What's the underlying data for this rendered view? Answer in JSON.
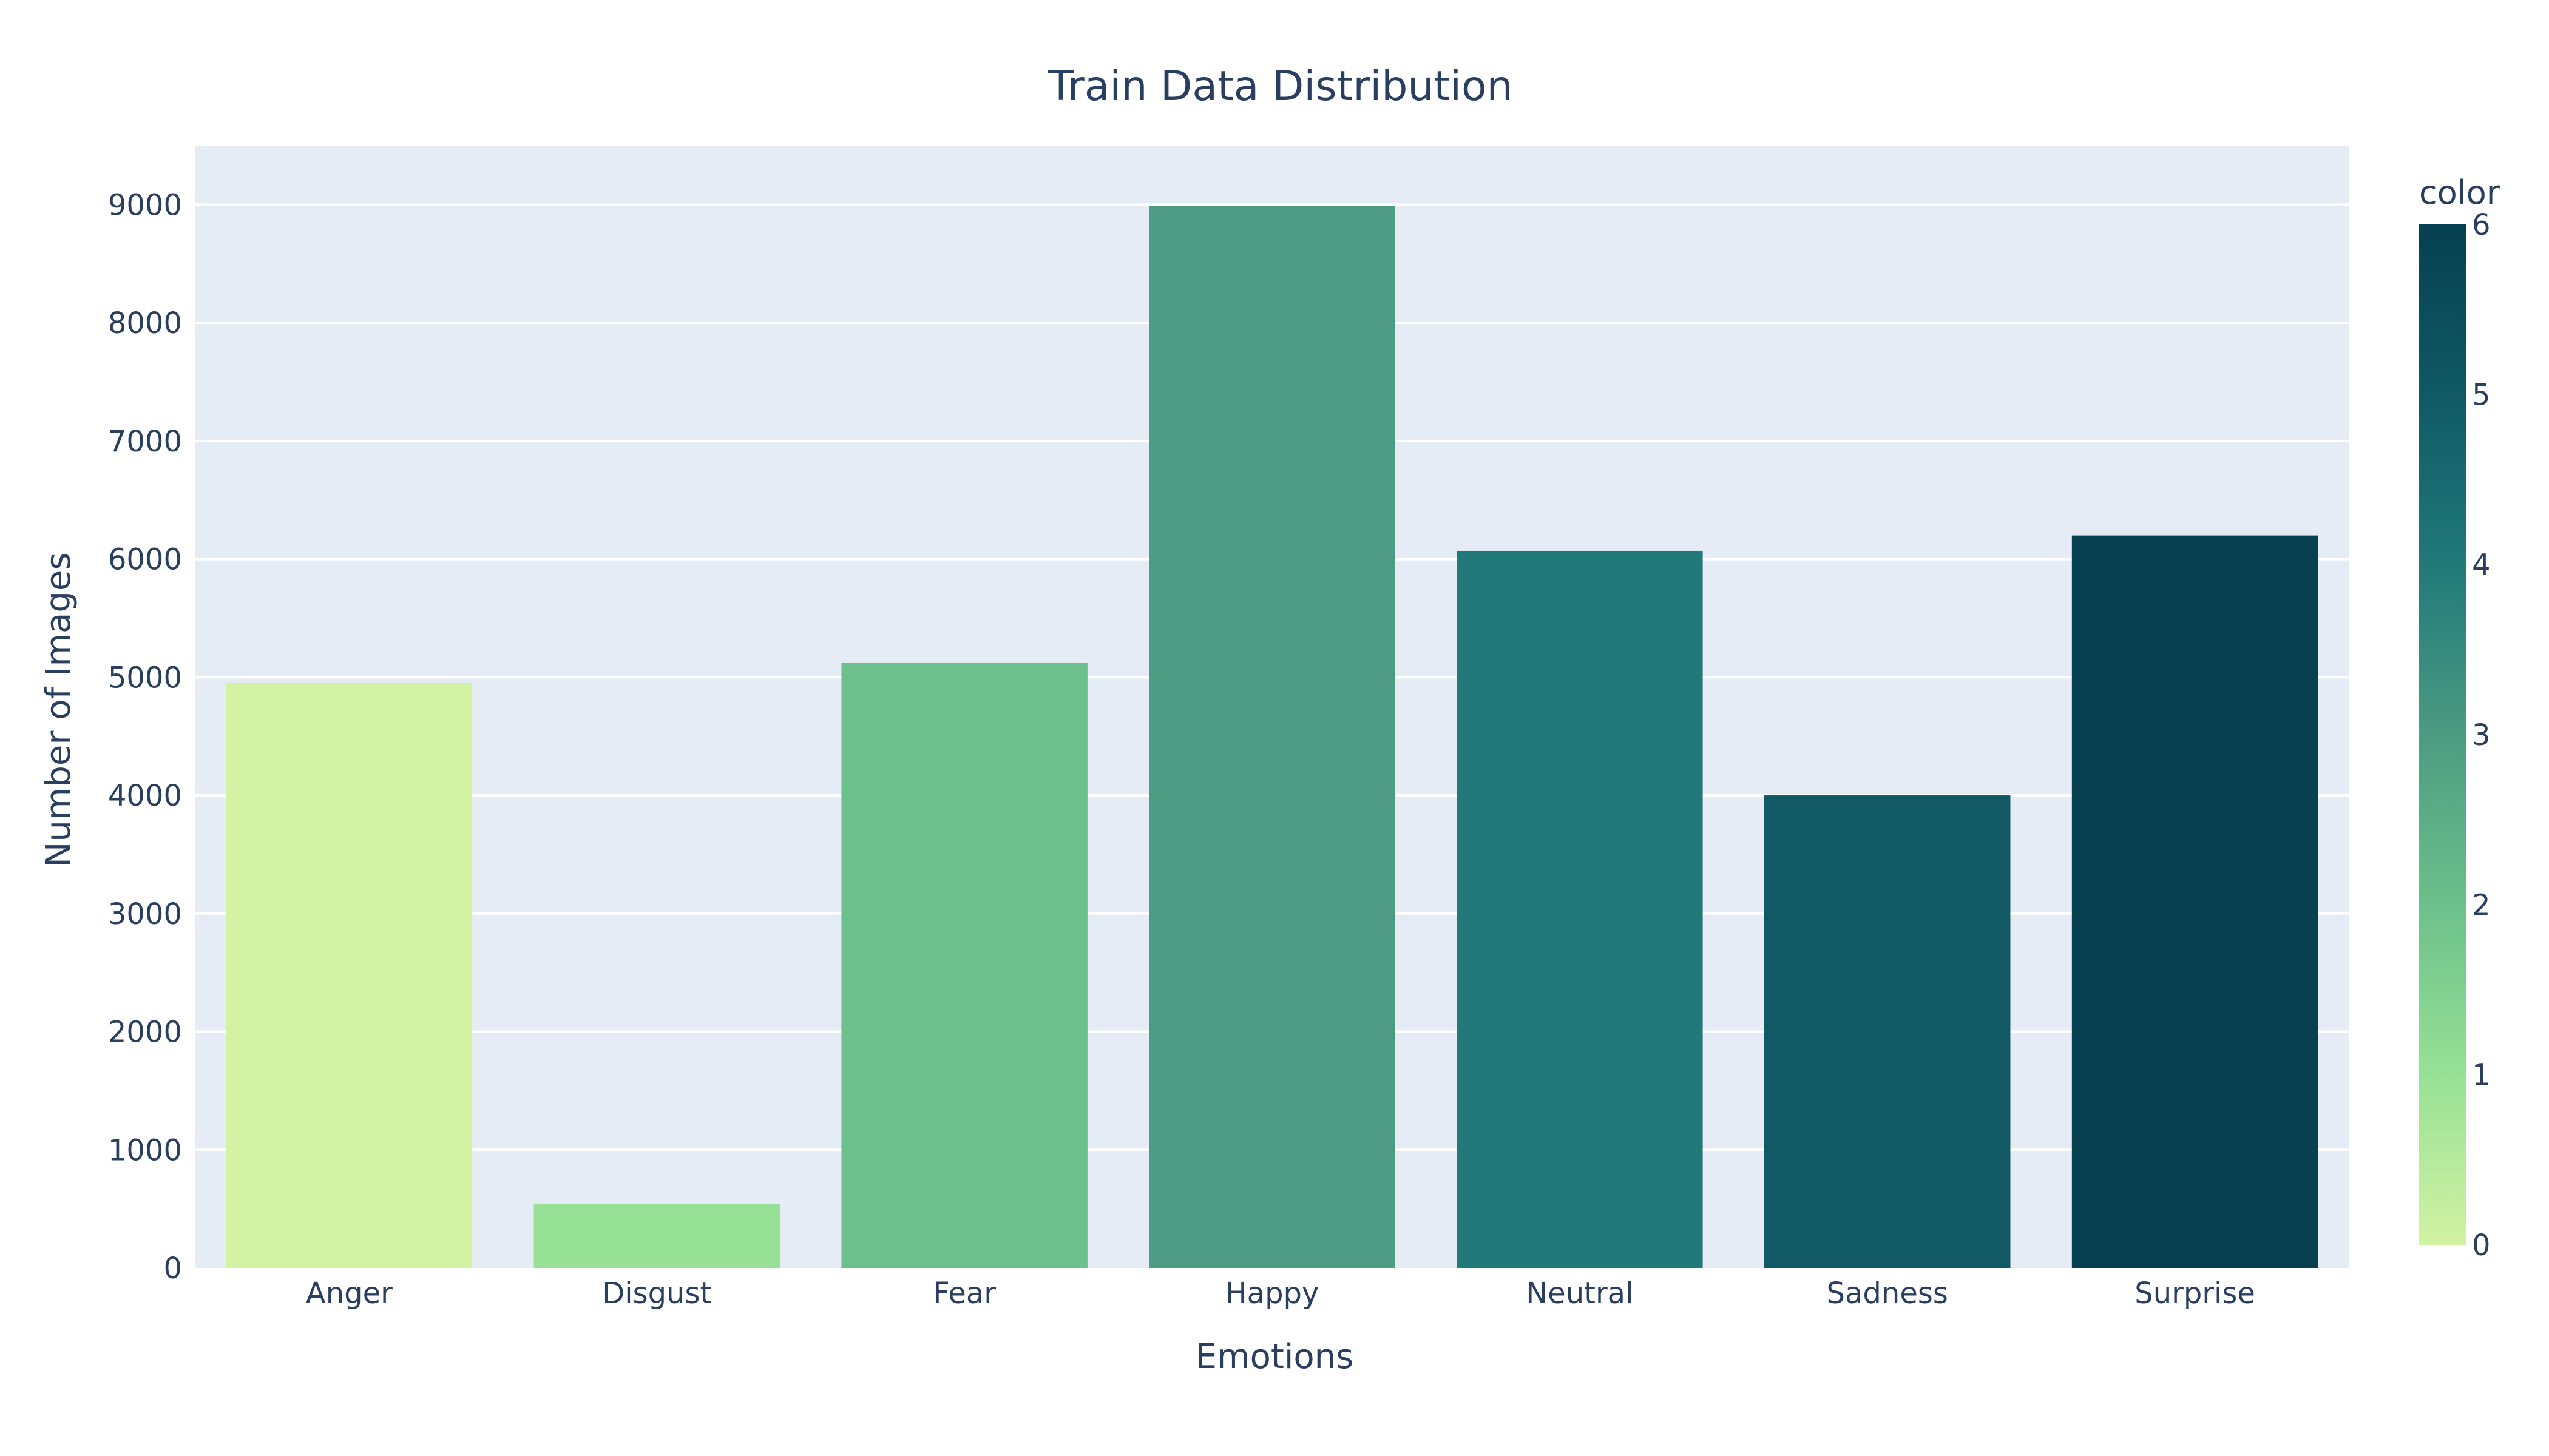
{
  "chart_data": {
    "type": "bar",
    "title": "Train Data Distribution",
    "xlabel": "Emotions",
    "ylabel": "Number of Images",
    "categories": [
      "Anger",
      "Disgust",
      "Fear",
      "Happy",
      "Neutral",
      "Sadness",
      "Surprise"
    ],
    "values": [
      4950,
      540,
      5120,
      8990,
      6070,
      4000,
      6200
    ],
    "color_values": [
      0,
      1,
      2,
      3,
      4,
      5,
      6
    ],
    "ylim": [
      0,
      9500
    ],
    "yticks": [
      0,
      1000,
      2000,
      3000,
      4000,
      5000,
      6000,
      7000,
      8000,
      9000
    ],
    "grid": true,
    "colorbar": {
      "title": "color",
      "range": [
        0,
        6
      ],
      "ticks": [
        0,
        1,
        2,
        3,
        4,
        5,
        6
      ],
      "colorscale": [
        "#d3f2a3",
        "#97e196",
        "#6cc08b",
        "#4c9b82",
        "#217a79",
        "#105965",
        "#074050"
      ]
    },
    "colors": {
      "plot_background": "#e5ecf6",
      "gridline": "#ffffff",
      "text": "#2a3f5f"
    }
  }
}
